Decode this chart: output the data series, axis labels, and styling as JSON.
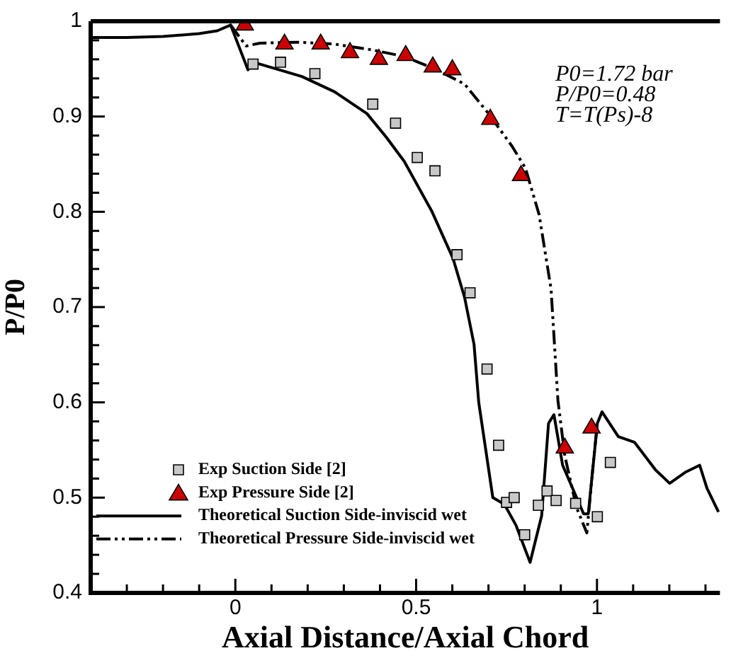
{
  "chart_data": {
    "type": "line",
    "xlabel": "Axial Distance/Axial Chord",
    "ylabel": "P/P0",
    "xlim": [
      -0.4,
      1.34
    ],
    "ylim": [
      0.4,
      1.0
    ],
    "xticks": [
      {
        "value": -0.3,
        "label": null
      },
      {
        "value": -0.2,
        "label": null
      },
      {
        "value": -0.1,
        "label": null
      },
      0,
      {
        "value": 0.1,
        "label": null
      },
      {
        "value": 0.2,
        "label": null
      },
      {
        "value": 0.3,
        "label": null
      },
      {
        "value": 0.4,
        "label": null
      },
      0.5,
      {
        "value": 0.6,
        "label": null
      },
      {
        "value": 0.7,
        "label": null
      },
      {
        "value": 0.8,
        "label": null
      },
      {
        "value": 0.9,
        "label": null
      },
      1,
      {
        "value": 1.1,
        "label": null
      },
      {
        "value": 1.2,
        "label": null
      },
      {
        "value": 1.3,
        "label": null
      }
    ],
    "yticks": [
      0.4,
      {
        "value": 0.42,
        "label": null
      },
      {
        "value": 0.44,
        "label": null
      },
      {
        "value": 0.46,
        "label": null
      },
      {
        "value": 0.48,
        "label": null
      },
      0.5,
      {
        "value": 0.52,
        "label": null
      },
      {
        "value": 0.54,
        "label": null
      },
      {
        "value": 0.56,
        "label": null
      },
      {
        "value": 0.58,
        "label": null
      },
      0.6,
      {
        "value": 0.62,
        "label": null
      },
      {
        "value": 0.64,
        "label": null
      },
      {
        "value": 0.66,
        "label": null
      },
      {
        "value": 0.68,
        "label": null
      },
      0.7,
      {
        "value": 0.72,
        "label": null
      },
      {
        "value": 0.74,
        "label": null
      },
      {
        "value": 0.76,
        "label": null
      },
      {
        "value": 0.78,
        "label": null
      },
      0.8,
      {
        "value": 0.82,
        "label": null
      },
      {
        "value": 0.84,
        "label": null
      },
      {
        "value": 0.86,
        "label": null
      },
      {
        "value": 0.88,
        "label": null
      },
      0.9,
      {
        "value": 0.92,
        "label": null
      },
      {
        "value": 0.94,
        "label": null
      },
      {
        "value": 0.96,
        "label": null
      },
      {
        "value": 0.98,
        "label": null
      },
      1
    ],
    "grid": false,
    "legend": "bottom left",
    "annotations": [
      "P0=1.72 bar",
      "P/P0=0.48",
      "T=T(Ps)-8"
    ],
    "series": [
      {
        "name": "Exp Suction Side [2]",
        "type": "scatter",
        "marker": "square",
        "color": "#c8c8c8",
        "x": [
          0.049,
          0.125,
          0.22,
          0.38,
          0.443,
          0.503,
          0.552,
          0.613,
          0.649,
          0.696,
          0.728,
          0.75,
          0.771,
          0.8,
          0.838,
          0.862,
          0.887,
          0.941,
          1.001,
          1.037
        ],
        "values": [
          0.955,
          0.957,
          0.945,
          0.913,
          0.893,
          0.857,
          0.843,
          0.755,
          0.715,
          0.635,
          0.555,
          0.495,
          0.5,
          0.461,
          0.492,
          0.507,
          0.497,
          0.494,
          0.48,
          0.537
        ]
      },
      {
        "name": "Exp Pressure Side [2]",
        "type": "scatter",
        "marker": "triangle",
        "color": "#cc0000",
        "x": [
          0.026,
          0.136,
          0.236,
          0.317,
          0.397,
          0.471,
          0.546,
          0.6,
          0.705,
          0.79,
          0.911,
          0.985
        ],
        "values": [
          0.996,
          0.976,
          0.976,
          0.967,
          0.96,
          0.964,
          0.952,
          0.949,
          0.897,
          0.838,
          0.552,
          0.573
        ]
      },
      {
        "name": "Theoretical Suction Side-inviscid wet",
        "type": "line",
        "line_style": "solid",
        "color": "#000000",
        "x": [
          -0.4,
          -0.3,
          -0.2,
          -0.1,
          -0.05,
          -0.013,
          0.035,
          0.05,
          0.068,
          0.184,
          0.274,
          0.364,
          0.416,
          0.467,
          0.544,
          0.602,
          0.634,
          0.66,
          0.673,
          0.712,
          0.744,
          0.776,
          0.815,
          0.847,
          0.866,
          0.881,
          0.905,
          0.963,
          0.976,
          1.001,
          1.014,
          1.059,
          1.104,
          1.162,
          1.201,
          1.246,
          1.284,
          1.304,
          1.336
        ],
        "values": [
          0.983,
          0.983,
          0.984,
          0.987,
          0.99,
          0.996,
          0.949,
          0.957,
          0.955,
          0.942,
          0.926,
          0.903,
          0.879,
          0.853,
          0.8,
          0.751,
          0.71,
          0.661,
          0.6,
          0.5,
          0.493,
          0.471,
          0.432,
          0.481,
          0.578,
          0.587,
          0.534,
          0.483,
          0.483,
          0.578,
          0.59,
          0.564,
          0.558,
          0.529,
          0.515,
          0.527,
          0.534,
          0.51,
          0.485
        ]
      },
      {
        "name": "Theoretical Pressure Side-inviscid wet",
        "type": "line",
        "line_style": "dashed",
        "color": "#000000",
        "x": [
          -0.013,
          0.03,
          0.068,
          0.171,
          0.274,
          0.377,
          0.467,
          0.557,
          0.634,
          0.698,
          0.763,
          0.802,
          0.84,
          0.873,
          0.892,
          0.911,
          0.943,
          0.972,
          0.988,
          1.001
        ],
        "values": [
          0.996,
          0.974,
          0.977,
          0.978,
          0.976,
          0.97,
          0.963,
          0.949,
          0.934,
          0.904,
          0.87,
          0.846,
          0.797,
          0.719,
          0.602,
          0.544,
          0.49,
          0.463,
          0.529,
          0.578
        ]
      }
    ]
  }
}
